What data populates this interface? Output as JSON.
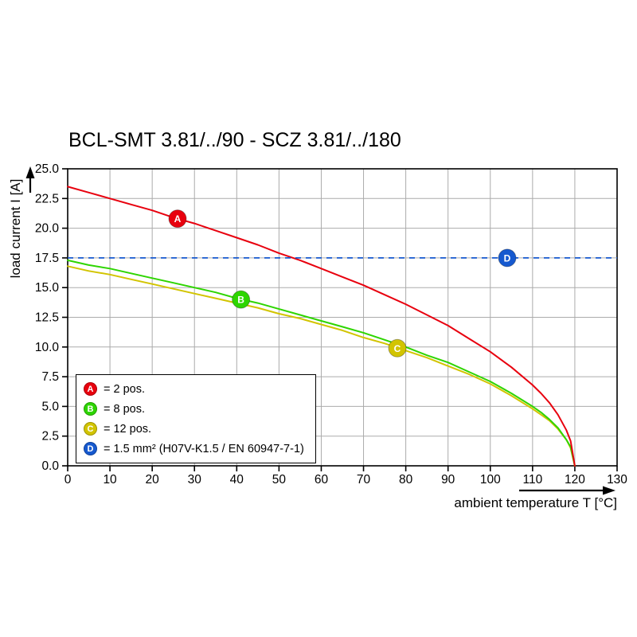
{
  "page": {
    "background": "#ffffff"
  },
  "chart_data": {
    "type": "line",
    "title": "BCL-SMT 3.81/../90 - SCZ 3.81/../180",
    "xlabel": "ambient temperature T [°C]",
    "ylabel": "load current I [A]",
    "xlim": [
      0,
      130
    ],
    "ylim": [
      0,
      25
    ],
    "xticks": [
      0,
      10,
      20,
      30,
      40,
      50,
      60,
      70,
      80,
      90,
      100,
      110,
      120,
      130
    ],
    "yticks": [
      0,
      2.5,
      5,
      7.5,
      10,
      12.5,
      15,
      17.5,
      20,
      22.5,
      25
    ],
    "ytick_labels": [
      "0.0",
      "2.5",
      "5.0",
      "7.5",
      "10.0",
      "12.5",
      "15.0",
      "17.5",
      "20.0",
      "22.5",
      "25.0"
    ],
    "grid": true,
    "grid_color": "#ababab",
    "axis_color": "#000000",
    "series": [
      {
        "name": "A",
        "label": "= 2 pos.",
        "color": "#e8000e",
        "marker_at": [
          26,
          20.8
        ],
        "points": [
          [
            0,
            23.5
          ],
          [
            5,
            23.0
          ],
          [
            10,
            22.5
          ],
          [
            15,
            22.0
          ],
          [
            20,
            21.5
          ],
          [
            25,
            20.9
          ],
          [
            30,
            20.4
          ],
          [
            35,
            19.8
          ],
          [
            40,
            19.2
          ],
          [
            45,
            18.6
          ],
          [
            50,
            17.9
          ],
          [
            55,
            17.3
          ],
          [
            60,
            16.6
          ],
          [
            65,
            15.9
          ],
          [
            70,
            15.2
          ],
          [
            75,
            14.4
          ],
          [
            80,
            13.6
          ],
          [
            85,
            12.7
          ],
          [
            90,
            11.8
          ],
          [
            95,
            10.7
          ],
          [
            100,
            9.6
          ],
          [
            105,
            8.3
          ],
          [
            110,
            6.8
          ],
          [
            112,
            6.1
          ],
          [
            114,
            5.3
          ],
          [
            116,
            4.3
          ],
          [
            118,
            3.0
          ],
          [
            119,
            2.1
          ],
          [
            120,
            0
          ]
        ]
      },
      {
        "name": "B",
        "label": "= 8 pos.",
        "color": "#2ed500",
        "marker_at": [
          41,
          14.0
        ],
        "points": [
          [
            0,
            17.3
          ],
          [
            5,
            16.9
          ],
          [
            10,
            16.6
          ],
          [
            15,
            16.2
          ],
          [
            20,
            15.8
          ],
          [
            25,
            15.4
          ],
          [
            30,
            15.0
          ],
          [
            35,
            14.6
          ],
          [
            40,
            14.1
          ],
          [
            45,
            13.7
          ],
          [
            50,
            13.2
          ],
          [
            55,
            12.7
          ],
          [
            60,
            12.2
          ],
          [
            65,
            11.7
          ],
          [
            70,
            11.2
          ],
          [
            75,
            10.6
          ],
          [
            80,
            10.0
          ],
          [
            85,
            9.3
          ],
          [
            90,
            8.7
          ],
          [
            95,
            7.9
          ],
          [
            100,
            7.1
          ],
          [
            105,
            6.1
          ],
          [
            110,
            5.0
          ],
          [
            112,
            4.5
          ],
          [
            114,
            3.9
          ],
          [
            116,
            3.2
          ],
          [
            118,
            2.2
          ],
          [
            119,
            1.6
          ],
          [
            120,
            0
          ]
        ]
      },
      {
        "name": "C",
        "label": "= 12 pos.",
        "color": "#d2c400",
        "marker_at": [
          78,
          9.9
        ],
        "points": [
          [
            0,
            16.8
          ],
          [
            5,
            16.4
          ],
          [
            10,
            16.1
          ],
          [
            15,
            15.7
          ],
          [
            20,
            15.3
          ],
          [
            25,
            14.9
          ],
          [
            30,
            14.5
          ],
          [
            35,
            14.1
          ],
          [
            40,
            13.7
          ],
          [
            45,
            13.3
          ],
          [
            50,
            12.8
          ],
          [
            55,
            12.4
          ],
          [
            60,
            11.9
          ],
          [
            65,
            11.4
          ],
          [
            70,
            10.8
          ],
          [
            75,
            10.3
          ],
          [
            80,
            9.7
          ],
          [
            85,
            9.1
          ],
          [
            90,
            8.4
          ],
          [
            95,
            7.7
          ],
          [
            100,
            6.9
          ],
          [
            105,
            5.9
          ],
          [
            110,
            4.8
          ],
          [
            112,
            4.3
          ],
          [
            114,
            3.8
          ],
          [
            116,
            3.1
          ],
          [
            118,
            2.2
          ],
          [
            119,
            1.5
          ],
          [
            120,
            0
          ]
        ]
      }
    ],
    "reference_line": {
      "name": "D",
      "label": "= 1.5 mm² (H07V-K1.5 / EN 60947-7-1)",
      "color": "#1659cf",
      "y": 17.5,
      "marker_at": [
        104,
        17.5
      ]
    },
    "legend": {
      "position": "bottom-left",
      "items": [
        {
          "marker": "A",
          "color": "#e8000e",
          "label": "= 2 pos."
        },
        {
          "marker": "B",
          "color": "#2ed500",
          "label": "= 8 pos."
        },
        {
          "marker": "C",
          "color": "#d2c400",
          "label": "= 12 pos."
        },
        {
          "marker": "D",
          "color": "#1659cf",
          "label": "= 1.5 mm² (H07V-K1.5 / EN 60947-7-1)"
        }
      ]
    }
  }
}
